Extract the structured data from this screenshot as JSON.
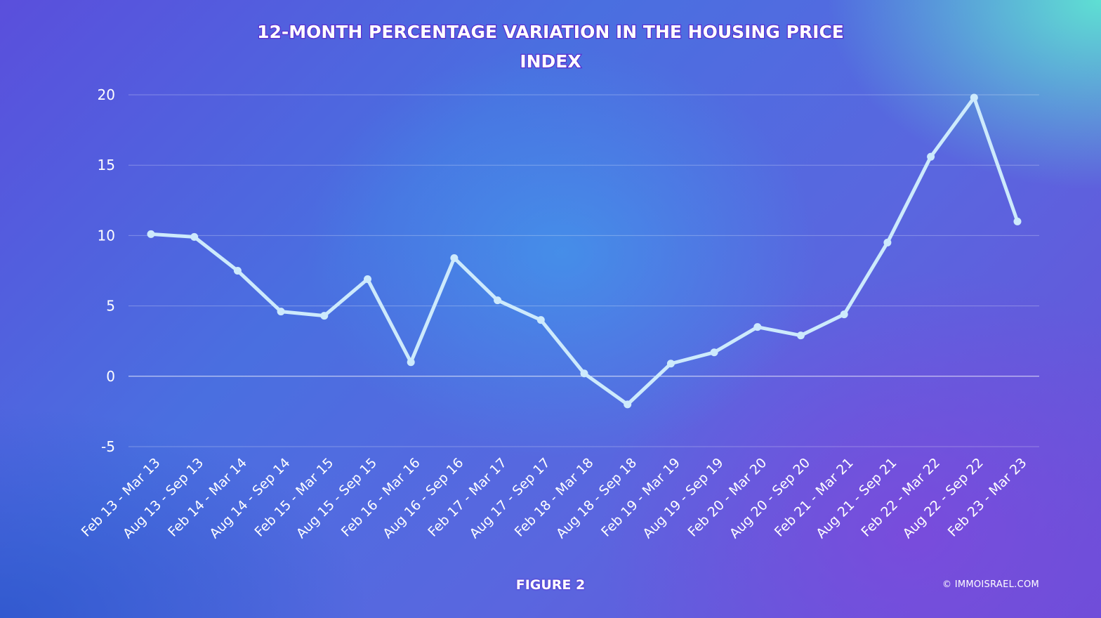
{
  "chart_data": {
    "type": "line",
    "title": "12-MONTH PERCENTAGE VARIATION IN THE HOUSING PRICE INDEX",
    "title_lines": [
      "12-MONTH PERCENTAGE VARIATION IN THE HOUSING PRICE",
      "INDEX"
    ],
    "xlabel": "",
    "ylabel": "",
    "ylim": [
      -5,
      20
    ],
    "yticks": [
      -5,
      0,
      5,
      10,
      15,
      20
    ],
    "grid": true,
    "categories": [
      "Feb 13 - Mar 13",
      "Aug 13 - Sep 13",
      "Feb 14 - Mar 14",
      "Aug 14 - Sep 14",
      "Feb 15 - Mar 15",
      "Aug 15 - Sep 15",
      "Feb 16 - Mar 16",
      "Aug 16 - Sep 16",
      "Feb 17 - Mar 17",
      "Aug 17 - Sep 17",
      "Feb 18 - Mar 18",
      "Aug 18 - Sep 18",
      "Feb 19 - Mar 19",
      "Aug 19 - Sep 19",
      "Feb 20 - Mar 20",
      "Aug 20 - Sep 20",
      "Feb 21 - Mar 21",
      "Aug 21 - Sep 21",
      "Feb 22 - Mar 22",
      "Aug 22 - Sep 22",
      "Feb 23 - Mar 23"
    ],
    "series": [
      {
        "values": [
          10.1,
          9.9,
          7.5,
          4.6,
          4.3,
          6.9,
          1.0,
          8.4,
          5.4,
          4.0,
          0.2,
          -2.0,
          0.9,
          1.7,
          3.5,
          2.9,
          4.4,
          9.5,
          15.6,
          19.8,
          11.0
        ]
      }
    ],
    "colors": {
      "line": "#cdeafc"
    }
  },
  "footer": {
    "figure_label": "FIGURE 2",
    "credit": "© IMMOISRAEL.COM"
  }
}
